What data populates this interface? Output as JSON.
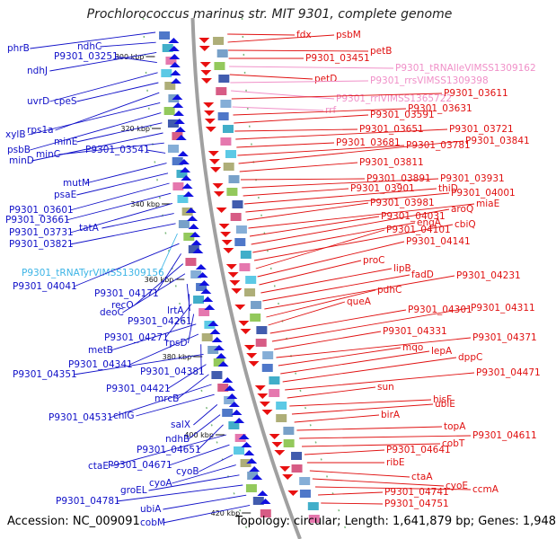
{
  "title": "Prochlorococcus marinus str. MIT 9301, complete genome",
  "footer": {
    "accession": "Accession: NC_009091",
    "topology": "Topology: circular; Length: 1,641,879 bp; Genes: 1,948"
  },
  "colors": {
    "left_label": "#1010c8",
    "right_label": "#e01010",
    "trna_left": "#3cb4e6",
    "rrna_right": "#f090c8",
    "backbone": "#a0a0a0",
    "fwd_arrow": "#1010e0",
    "rev_arrow": "#e81010"
  },
  "scale_marks": [
    "300 kbp",
    "320 kbp",
    "340 kbp",
    "360 kbp",
    "380 kbp",
    "400 kbp",
    "420 kbp"
  ],
  "left_genes": [
    {
      "text": "phrB",
      "kind": "gene"
    },
    {
      "text": "ndhC",
      "kind": "gene"
    },
    {
      "text": "ndhJ",
      "kind": "gene"
    },
    {
      "text": "P9301_03251",
      "kind": "gene"
    },
    {
      "text": "uvrD",
      "kind": "gene"
    },
    {
      "text": "cpeS",
      "kind": "gene"
    },
    {
      "text": "rps1a",
      "kind": "gene"
    },
    {
      "text": "xylB",
      "kind": "gene"
    },
    {
      "text": "psbB",
      "kind": "gene"
    },
    {
      "text": "minE",
      "kind": "gene"
    },
    {
      "text": "minD",
      "kind": "gene"
    },
    {
      "text": "minC",
      "kind": "gene"
    },
    {
      "text": "P9301_03541",
      "kind": "gene"
    },
    {
      "text": "mutM",
      "kind": "gene"
    },
    {
      "text": "psaE",
      "kind": "gene"
    },
    {
      "text": "P9301_03601",
      "kind": "gene"
    },
    {
      "text": "P9301_03661",
      "kind": "gene"
    },
    {
      "text": "P9301_03731",
      "kind": "gene"
    },
    {
      "text": "tatA",
      "kind": "gene"
    },
    {
      "text": "P9301_03821",
      "kind": "gene"
    },
    {
      "text": "P9301_tRNATyrVIMSS1309156",
      "kind": "trna"
    },
    {
      "text": "P9301_04041",
      "kind": "gene"
    },
    {
      "text": "P9301_04171",
      "kind": "gene"
    },
    {
      "text": "recO",
      "kind": "gene"
    },
    {
      "text": "deoC",
      "kind": "gene"
    },
    {
      "text": "lrtA",
      "kind": "gene"
    },
    {
      "text": "P9301_04261",
      "kind": "gene"
    },
    {
      "text": "P9301_04271",
      "kind": "gene"
    },
    {
      "text": "rpsD",
      "kind": "gene"
    },
    {
      "text": "metB",
      "kind": "gene"
    },
    {
      "text": "P9301_04341",
      "kind": "gene"
    },
    {
      "text": "P9301_04381",
      "kind": "gene"
    },
    {
      "text": "P9301_04351",
      "kind": "gene"
    },
    {
      "text": "P9301_04421",
      "kind": "gene"
    },
    {
      "text": "mrcB",
      "kind": "gene"
    },
    {
      "text": "P9301_04531",
      "kind": "gene"
    },
    {
      "text": "chlG",
      "kind": "gene"
    },
    {
      "text": "salX",
      "kind": "gene"
    },
    {
      "text": "ndhB",
      "kind": "gene"
    },
    {
      "text": "P9301_04651",
      "kind": "gene"
    },
    {
      "text": "ctaE",
      "kind": "gene"
    },
    {
      "text": "P9301_04671",
      "kind": "gene"
    },
    {
      "text": "cyoB",
      "kind": "gene"
    },
    {
      "text": "cyoA",
      "kind": "gene"
    },
    {
      "text": "groEL",
      "kind": "gene"
    },
    {
      "text": "P9301_04781",
      "kind": "gene"
    },
    {
      "text": "ubiA",
      "kind": "gene"
    },
    {
      "text": "cobM",
      "kind": "gene"
    }
  ],
  "right_genes": [
    {
      "text": "fdx",
      "kind": "gene"
    },
    {
      "text": "psbM",
      "kind": "gene"
    },
    {
      "text": "petB",
      "kind": "gene"
    },
    {
      "text": "P9301_03451",
      "kind": "gene"
    },
    {
      "text": "P9301_tRNAIleVIMSS1309162",
      "kind": "rrna"
    },
    {
      "text": "petD",
      "kind": "gene"
    },
    {
      "text": "P9301_rrsVIMSS1309398",
      "kind": "rrna"
    },
    {
      "text": "P9301_rrlVIMSS1365722",
      "kind": "rrna"
    },
    {
      "text": "P9301_03611",
      "kind": "gene"
    },
    {
      "text": "rrf",
      "kind": "rrna"
    },
    {
      "text": "P9301_03631",
      "kind": "gene"
    },
    {
      "text": "P9301_03591",
      "kind": "gene"
    },
    {
      "text": "P9301_03651",
      "kind": "gene"
    },
    {
      "text": "P9301_03721",
      "kind": "gene"
    },
    {
      "text": "P9301_03681",
      "kind": "gene"
    },
    {
      "text": "P9301_03781",
      "kind": "gene"
    },
    {
      "text": "P9301_03841",
      "kind": "gene"
    },
    {
      "text": "P9301_03811",
      "kind": "gene"
    },
    {
      "text": "P9301_03891",
      "kind": "gene"
    },
    {
      "text": "P9301_03931",
      "kind": "gene"
    },
    {
      "text": "P9301_03901",
      "kind": "gene"
    },
    {
      "text": "thiD",
      "kind": "gene"
    },
    {
      "text": "P9301_04001",
      "kind": "gene"
    },
    {
      "text": "P9301_03981",
      "kind": "gene"
    },
    {
      "text": "miaE",
      "kind": "gene"
    },
    {
      "text": "P9301_04031",
      "kind": "gene"
    },
    {
      "text": "aroQ",
      "kind": "gene"
    },
    {
      "text": "engA",
      "kind": "gene"
    },
    {
      "text": "cbiQ",
      "kind": "gene"
    },
    {
      "text": "P9301_04101",
      "kind": "gene"
    },
    {
      "text": "P9301_04141",
      "kind": "gene"
    },
    {
      "text": "proC",
      "kind": "gene"
    },
    {
      "text": "lipB",
      "kind": "gene"
    },
    {
      "text": "fadD",
      "kind": "gene"
    },
    {
      "text": "P9301_04231",
      "kind": "gene"
    },
    {
      "text": "pdhC",
      "kind": "gene"
    },
    {
      "text": "queA",
      "kind": "gene"
    },
    {
      "text": "P9301_04301",
      "kind": "gene"
    },
    {
      "text": "P9301_04311",
      "kind": "gene"
    },
    {
      "text": "P9301_04331",
      "kind": "gene"
    },
    {
      "text": "P9301_04371",
      "kind": "gene"
    },
    {
      "text": "mqo",
      "kind": "gene"
    },
    {
      "text": "lepA",
      "kind": "gene"
    },
    {
      "text": "dppC",
      "kind": "gene"
    },
    {
      "text": "P9301_04471",
      "kind": "gene"
    },
    {
      "text": "sun",
      "kind": "gene"
    },
    {
      "text": "hisF",
      "kind": "gene"
    },
    {
      "text": "ubiE",
      "kind": "gene"
    },
    {
      "text": "birA",
      "kind": "gene"
    },
    {
      "text": "topA",
      "kind": "gene"
    },
    {
      "text": "P9301_04611",
      "kind": "gene"
    },
    {
      "text": "cobT",
      "kind": "gene"
    },
    {
      "text": "P9301_04641",
      "kind": "gene"
    },
    {
      "text": "ribE",
      "kind": "gene"
    },
    {
      "text": "ctaA",
      "kind": "gene"
    },
    {
      "text": "cyoE",
      "kind": "gene"
    },
    {
      "text": "ccmA",
      "kind": "gene"
    },
    {
      "text": "P9301_04741",
      "kind": "gene"
    },
    {
      "text": "P9301_04751",
      "kind": "gene"
    }
  ]
}
